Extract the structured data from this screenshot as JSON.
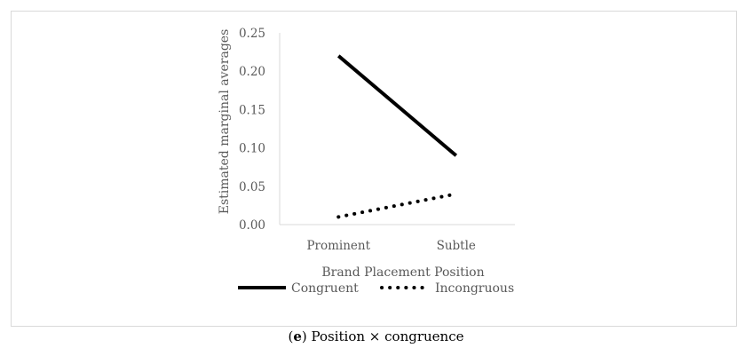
{
  "chart_data": {
    "type": "line",
    "categories": [
      "Prominent",
      "Subtle"
    ],
    "series": [
      {
        "name": "Congruent",
        "values": [
          0.22,
          0.09
        ],
        "style": "solid",
        "color": "#000000"
      },
      {
        "name": "Incongruous",
        "values": [
          0.01,
          0.04
        ],
        "style": "dotted",
        "color": "#000000"
      }
    ],
    "title": "",
    "xlabel": "Brand Placement Position",
    "ylabel": "Estimated marginal averages",
    "ylim": [
      0,
      0.25
    ],
    "yticks": [
      "0.00",
      "0.05",
      "0.10",
      "0.15",
      "0.20",
      "0.25"
    ],
    "grid": false,
    "legend_position": "bottom"
  },
  "caption": {
    "letter": "e",
    "text": "Position × congruence"
  }
}
